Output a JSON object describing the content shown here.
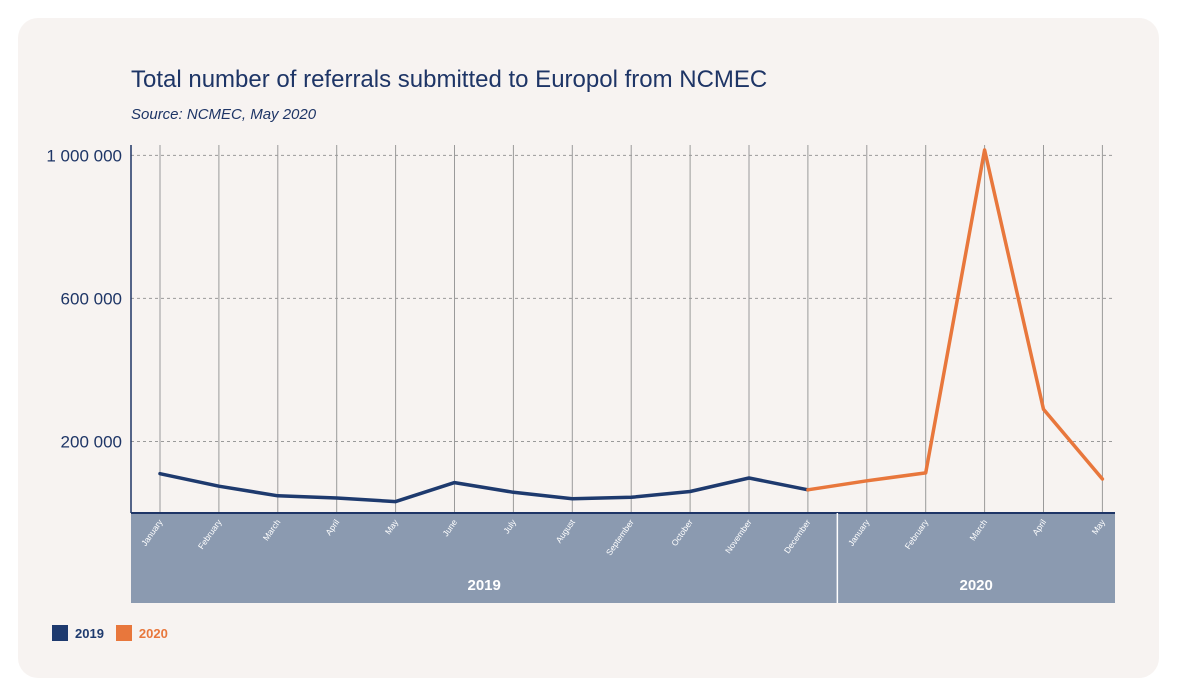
{
  "title": "Total number of referrals submitted to Europol from NCMEC",
  "subtitle": "Source: NCMEC, May 2020",
  "chart_data": {
    "type": "line",
    "title": "Total number of referrals submitted to Europol from NCMEC",
    "subtitle": "Source: NCMEC, May 2020",
    "categories": [
      "January",
      "February",
      "March",
      "April",
      "May",
      "June",
      "July",
      "August",
      "September",
      "October",
      "November",
      "December",
      "January",
      "February",
      "March",
      "April",
      "May"
    ],
    "groups": [
      {
        "label": "2019",
        "count": 12
      },
      {
        "label": "2020",
        "count": 5
      }
    ],
    "series": [
      {
        "name": "2019",
        "color": "#1e3a6e",
        "values": [
          110000,
          75000,
          48000,
          42000,
          32000,
          85000,
          58000,
          40000,
          44000,
          60000,
          98000,
          65000,
          null,
          null,
          null,
          null,
          null
        ]
      },
      {
        "name": "2020",
        "color": "#e8773c",
        "values": [
          null,
          null,
          null,
          null,
          null,
          null,
          null,
          null,
          null,
          null,
          null,
          65000,
          90000,
          112000,
          1015000,
          290000,
          95000
        ]
      }
    ],
    "yticks": [
      200000,
      600000,
      1000000
    ],
    "ytick_labels": [
      "200 000",
      "600 000",
      "1 000 000"
    ],
    "ylim": [
      0,
      1015000
    ],
    "grid": true,
    "legend_position": "bottom-left"
  },
  "legend": [
    {
      "label": "2019",
      "color": "#1e3a6e"
    },
    {
      "label": "2020",
      "color": "#e8773c"
    }
  ]
}
